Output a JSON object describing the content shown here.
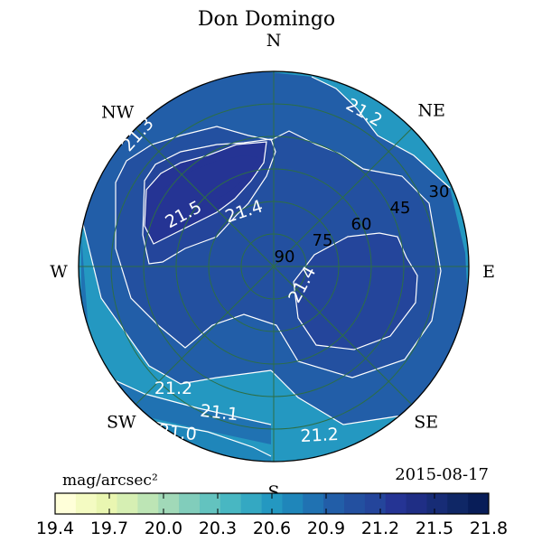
{
  "chart_data": {
    "type": "heatmap",
    "projection": "polar (altitude rings, azimuth spokes)",
    "title": "Don Domingo",
    "date": "2015-08-17",
    "colorbar": {
      "label": "mag/arcsec²",
      "min": 19.4,
      "max": 21.8,
      "step": 0.1,
      "ticks": [
        "19.4",
        "19.7",
        "20.0",
        "20.3",
        "20.6",
        "20.9",
        "21.2",
        "21.5",
        "21.8"
      ],
      "colors": [
        "#ffffd9",
        "#f4fbc2",
        "#e9f6b1",
        "#d6efb3",
        "#bde5b5",
        "#a1d9b8",
        "#81cdbb",
        "#63c3bf",
        "#48b7c2",
        "#34a8c2",
        "#2498c1",
        "#1f86ba",
        "#2072b2",
        "#225ea8",
        "#2350a0",
        "#24459b",
        "#253494",
        "#1f2e85",
        "#172c76",
        "#0f2766",
        "#081d58"
      ]
    },
    "directions": [
      {
        "label": "N",
        "azimuth": 0
      },
      {
        "label": "NE",
        "azimuth": 45
      },
      {
        "label": "E",
        "azimuth": 90
      },
      {
        "label": "SE",
        "azimuth": 135
      },
      {
        "label": "S",
        "azimuth": 180
      },
      {
        "label": "SW",
        "azimuth": 225
      },
      {
        "label": "W",
        "azimuth": 270
      },
      {
        "label": "NW",
        "azimuth": 315
      }
    ],
    "altitude_rings": [
      {
        "label": "30",
        "altitude": 30
      },
      {
        "label": "45",
        "altitude": 45
      },
      {
        "label": "60",
        "altitude": 60
      },
      {
        "label": "75",
        "altitude": 75
      },
      {
        "label": "90",
        "altitude": 90
      }
    ],
    "regions": [
      {
        "level": 21.0,
        "value": 20.95,
        "color": "#2498c1"
      },
      {
        "level": 21.1,
        "value": 21.05,
        "color": "#1f86ba"
      },
      {
        "level": 21.2,
        "value": 21.15,
        "color": "#2072b2"
      },
      {
        "level": 21.3,
        "value": 21.25,
        "color": "#225ea8"
      },
      {
        "level": 21.4,
        "value": 21.35,
        "color": "#2350a0"
      },
      {
        "level": 21.5,
        "value": 21.45,
        "color": "#24459b"
      },
      {
        "level": 21.6,
        "value": 21.55,
        "color": "#253494"
      }
    ],
    "contours": [
      {
        "level": 21.0,
        "label": "21.0"
      },
      {
        "level": 21.1,
        "label": "21.1"
      },
      {
        "level": 21.2,
        "label": "21.2"
      },
      {
        "level": 21.3,
        "label": "21.3"
      },
      {
        "level": 21.4,
        "label": "21.4"
      },
      {
        "level": 21.5,
        "label": "21.5"
      }
    ],
    "contour_labels": [
      {
        "text": "21.3",
        "level": 21.3
      },
      {
        "text": "21.2",
        "level": 21.2
      },
      {
        "text": "21.5",
        "level": 21.5
      },
      {
        "text": "21.4",
        "level": 21.4
      },
      {
        "text": "21.4",
        "level": 21.4
      },
      {
        "text": "21.2",
        "level": 21.2
      },
      {
        "text": "21.1",
        "level": 21.1
      },
      {
        "text": "21.0",
        "level": 21.0
      },
      {
        "text": "21.2",
        "level": 21.2
      }
    ],
    "grid": true,
    "legend": "colorbar-bottom"
  }
}
